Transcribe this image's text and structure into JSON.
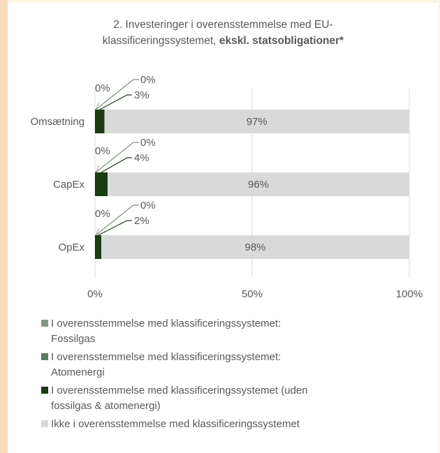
{
  "title": {
    "line1": "2. Investeringer i overensstemmelse med EU-",
    "line2_prefix": "klassificeringssystemet, ",
    "line2_bold": "ekskl. statsobligationer*"
  },
  "colors": {
    "fossilgas": "#7f9a7f",
    "atomenergi": "#5a7a5a",
    "aligned": "#1a3d12",
    "not_aligned": "#d9d9d9",
    "grid": "#d9d9d9",
    "text": "#595959"
  },
  "legend": [
    {
      "line1": "I overensstemmelse med klassificeringssystemet:",
      "line2": "Fossilgas",
      "color_key": "fossilgas"
    },
    {
      "line1": "I overensstemmelse med klassificeringssystemet:",
      "line2": "Atomenergi",
      "color_key": "atomenergi"
    },
    {
      "line1": "I overensstemmelse med klassificeringssystemet (uden",
      "line2": "fossilgas & atomenergi)",
      "color_key": "aligned"
    },
    {
      "line1": "Ikke i overensstemmelse med klassificeringssystemet",
      "line2": "",
      "color_key": "not_aligned"
    }
  ],
  "chart_data": {
    "type": "bar",
    "orientation": "horizontal",
    "stacked": true,
    "title": "2. Investeringer i overensstemmelse med EU-klassificeringssystemet, ekskl. statsobligationer*",
    "categories": [
      "Omsætning",
      "CapEx",
      "OpEx"
    ],
    "series": [
      {
        "name": "I overensstemmelse med klassificeringssystemet: Fossilgas",
        "values": [
          0,
          0,
          0
        ],
        "labels": [
          "0%",
          "0%",
          "0%"
        ]
      },
      {
        "name": "I overensstemmelse med klassificeringssystemet: Atomenergi",
        "values": [
          0,
          0,
          0
        ],
        "labels": [
          "0%",
          "0%",
          "0%"
        ]
      },
      {
        "name": "I overensstemmelse med klassificeringssystemet (uden fossilgas & atomenergi)",
        "values": [
          3,
          4,
          2
        ],
        "labels": [
          "3%",
          "4%",
          "2%"
        ]
      },
      {
        "name": "Ikke i overensstemmelse med klassificeringssystemet",
        "values": [
          97,
          96,
          98
        ],
        "labels": [
          "97%",
          "96%",
          "98%"
        ]
      }
    ],
    "xlim": [
      0,
      100
    ],
    "xticks": [
      "0%",
      "50%",
      "100%"
    ],
    "grid": true,
    "legend_position": "bottom"
  }
}
